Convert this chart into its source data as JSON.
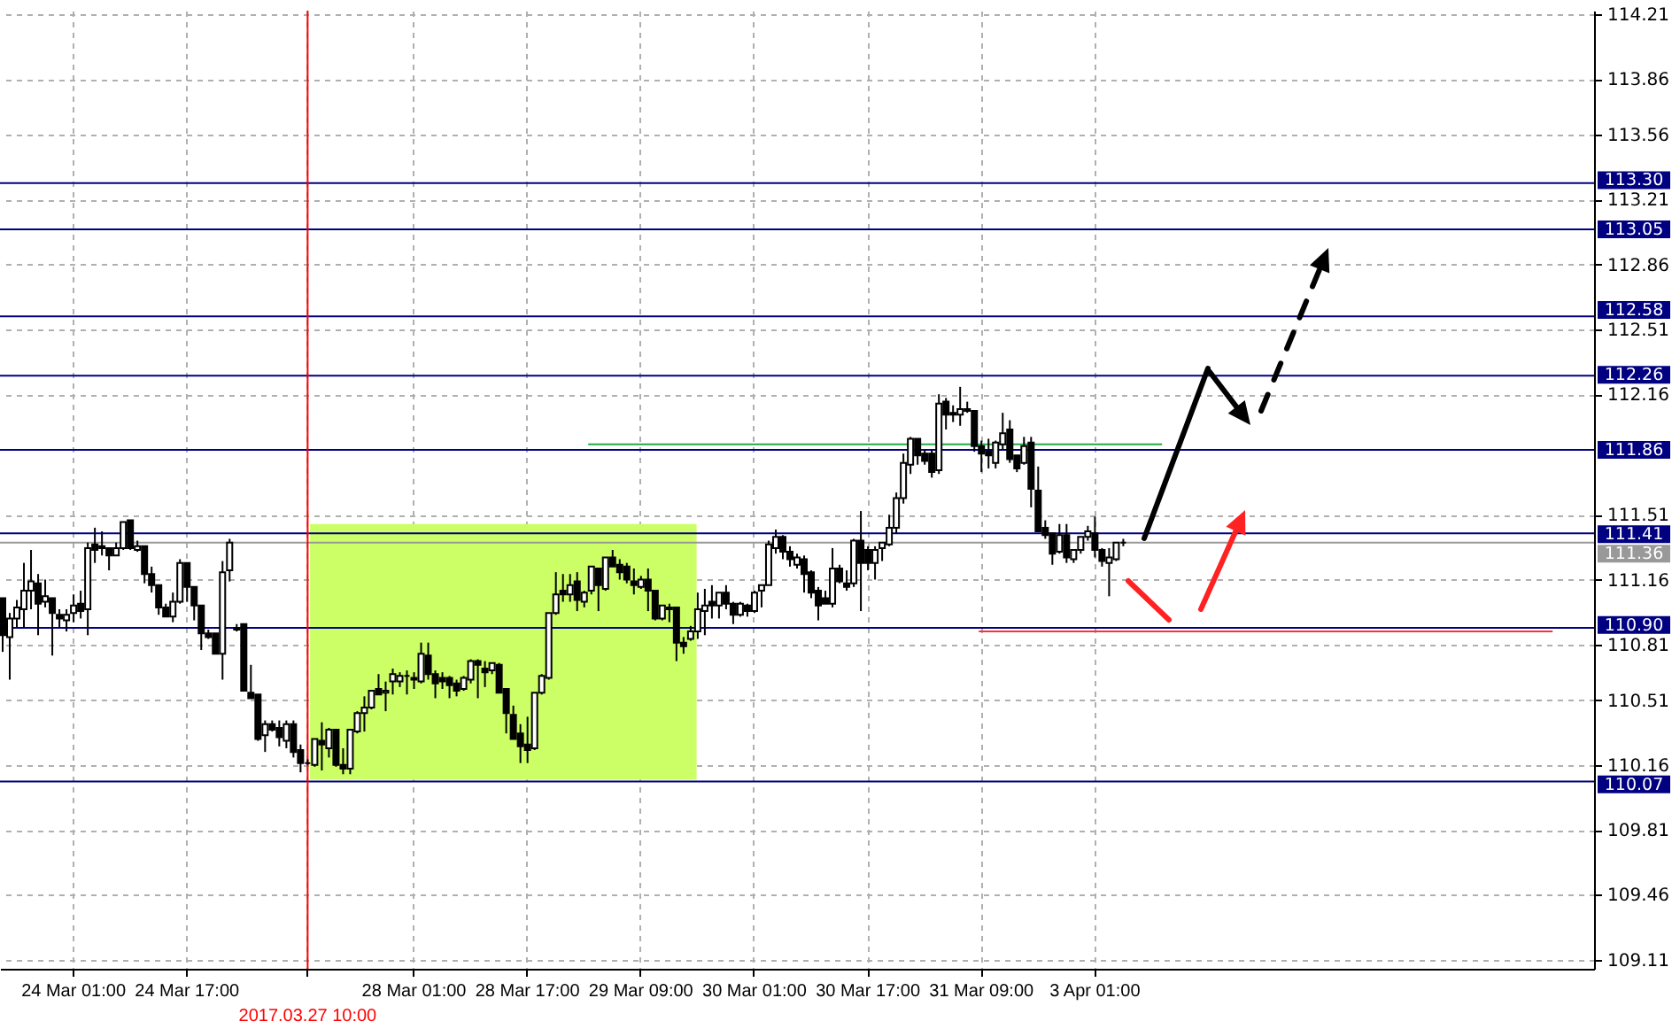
{
  "chart_data": {
    "type": "candlestick",
    "categories": [
      null,
      null,
      null,
      null,
      null,
      null,
      null,
      null,
      null,
      null,
      "24 Mar 01:00",
      null,
      null,
      null,
      null,
      null,
      null,
      null,
      null,
      null,
      null,
      null,
      null,
      null,
      null,
      null,
      "24 Mar 17:00",
      null,
      null,
      null,
      null,
      null,
      null,
      null,
      null,
      null,
      null,
      null,
      null,
      null,
      null,
      null,
      null,
      "2017.03.27 10:00",
      null,
      null,
      null,
      null,
      null,
      null,
      null,
      null,
      null,
      null,
      null,
      null,
      null,
      null,
      "28 Mar 01:00",
      null,
      null,
      null,
      null,
      null,
      null,
      null,
      null,
      null,
      null,
      null,
      null,
      null,
      null,
      null,
      "28 Mar 17:00",
      null,
      null,
      null,
      null,
      null,
      null,
      null,
      null,
      null,
      null,
      null,
      null,
      null,
      null,
      null,
      "29 Mar 09:00",
      null,
      null,
      null,
      null,
      null,
      null,
      null,
      null,
      null,
      null,
      null,
      null,
      null,
      null,
      null,
      "30 Mar 01:00",
      null,
      null,
      null,
      null,
      null,
      null,
      null,
      null,
      null,
      null,
      null,
      null,
      null,
      null,
      null,
      "30 Mar 17:00",
      null,
      null,
      null,
      null,
      null,
      null,
      null,
      null,
      null,
      null,
      null,
      null,
      null,
      null,
      null,
      "31 Mar 09:00",
      null,
      null,
      null,
      null,
      null,
      null,
      null,
      null,
      null,
      null,
      null,
      null,
      null,
      null,
      null,
      "3 Apr 01:00",
      null,
      null,
      null,
      null,
      null,
      null,
      null,
      null,
      null,
      null,
      null,
      null,
      null,
      null,
      null,
      null,
      null,
      null,
      null,
      null,
      null,
      null,
      null,
      null,
      null,
      null,
      null,
      null,
      null,
      null,
      null,
      null,
      null,
      null,
      null,
      null,
      null,
      null,
      null,
      null,
      null,
      null,
      null,
      null,
      null,
      null,
      null,
      null,
      null,
      null,
      null,
      null,
      null,
      null,
      null,
      null,
      null,
      null,
      null,
      null,
      null,
      null,
      null,
      null,
      null,
      null,
      null,
      null,
      null,
      null
    ],
    "ohlc": [
      [
        111.06,
        111.06,
        110.77,
        110.86
      ],
      [
        110.85,
        110.98,
        110.62,
        110.95
      ],
      [
        110.95,
        111.05,
        110.9,
        111.01
      ],
      [
        111.0,
        111.25,
        110.9,
        111.1
      ],
      [
        111.1,
        111.32,
        111.0,
        111.15
      ],
      [
        111.14,
        111.19,
        110.86,
        111.03
      ],
      [
        111.04,
        111.16,
        111.01,
        111.07
      ],
      [
        111.06,
        111.06,
        110.75,
        110.98
      ],
      [
        110.97,
        111.0,
        110.9,
        110.95
      ],
      [
        110.94,
        111.0,
        110.88,
        110.97
      ],
      [
        110.98,
        111.08,
        110.93,
        111.02
      ],
      [
        111.03,
        111.1,
        110.95,
        110.99
      ],
      [
        111.0,
        111.36,
        110.86,
        111.33
      ],
      [
        111.35,
        111.44,
        111.25,
        111.32
      ],
      [
        111.34,
        111.42,
        111.29,
        111.33
      ],
      [
        111.33,
        111.33,
        111.21,
        111.29
      ],
      [
        111.29,
        111.36,
        111.29,
        111.33
      ],
      [
        111.33,
        111.47,
        111.32,
        111.47
      ],
      [
        111.48,
        111.48,
        111.32,
        111.33
      ],
      [
        111.32,
        111.37,
        111.31,
        111.34
      ],
      [
        111.34,
        111.34,
        111.14,
        111.19
      ],
      [
        111.19,
        111.23,
        111.09,
        111.13
      ],
      [
        111.13,
        111.13,
        110.97,
        111.01
      ],
      [
        111.01,
        111.03,
        110.96,
        110.96
      ],
      [
        110.96,
        111.09,
        110.93,
        111.04
      ],
      [
        111.04,
        111.27,
        111.03,
        111.25
      ],
      [
        111.25,
        111.25,
        111.04,
        111.12
      ],
      [
        111.12,
        111.12,
        110.94,
        111.02
      ],
      [
        111.02,
        111.02,
        110.78,
        110.87
      ],
      [
        110.87,
        110.89,
        110.84,
        110.85
      ],
      [
        110.87,
        110.87,
        110.76,
        110.76
      ],
      [
        110.76,
        111.26,
        110.62,
        111.2
      ],
      [
        111.21,
        111.38,
        111.15,
        111.36
      ],
      [
        110.9,
        110.92,
        110.88,
        110.89
      ],
      [
        110.92,
        110.92,
        110.56,
        110.56
      ],
      [
        110.55,
        110.7,
        110.52,
        110.52
      ],
      [
        110.54,
        110.54,
        110.29,
        110.3
      ],
      [
        110.32,
        110.4,
        110.23,
        110.38
      ],
      [
        110.38,
        110.4,
        110.34,
        110.35
      ],
      [
        110.36,
        110.4,
        110.26,
        110.31
      ],
      [
        110.29,
        110.4,
        110.25,
        110.38
      ],
      [
        110.38,
        110.4,
        110.2,
        110.23
      ],
      [
        110.24,
        110.27,
        110.12,
        110.17
      ],
      [
        110.17,
        110.19,
        110.16,
        110.17
      ],
      [
        110.16,
        110.3,
        110.15,
        110.3
      ],
      [
        110.29,
        110.39,
        110.13,
        110.27
      ],
      [
        110.25,
        110.36,
        110.2,
        110.35
      ],
      [
        110.35,
        110.35,
        110.15,
        110.16
      ],
      [
        110.16,
        110.25,
        110.11,
        110.14
      ],
      [
        110.14,
        110.35,
        110.11,
        110.35
      ],
      [
        110.34,
        110.45,
        110.33,
        110.44
      ],
      [
        110.44,
        110.53,
        110.34,
        110.47
      ],
      [
        110.47,
        110.56,
        110.46,
        110.56
      ],
      [
        110.57,
        110.65,
        110.54,
        110.54
      ],
      [
        110.55,
        110.61,
        110.45,
        110.56
      ],
      [
        110.61,
        110.68,
        110.54,
        110.65
      ],
      [
        110.61,
        110.66,
        110.58,
        110.64
      ],
      [
        110.64,
        110.67,
        110.54,
        110.64
      ],
      [
        110.63,
        110.66,
        110.57,
        110.62
      ],
      [
        110.61,
        110.82,
        110.6,
        110.76
      ],
      [
        110.75,
        110.82,
        110.62,
        110.65
      ],
      [
        110.65,
        110.67,
        110.52,
        110.6
      ],
      [
        110.63,
        110.66,
        110.57,
        110.61
      ],
      [
        110.63,
        110.64,
        110.52,
        110.59
      ],
      [
        110.6,
        110.62,
        110.53,
        110.56
      ],
      [
        110.57,
        110.64,
        110.56,
        110.63
      ],
      [
        110.62,
        110.73,
        110.6,
        110.72
      ],
      [
        110.72,
        110.73,
        110.52,
        110.7
      ],
      [
        110.68,
        110.72,
        110.58,
        110.66
      ],
      [
        110.67,
        110.71,
        110.65,
        110.71
      ],
      [
        110.7,
        110.71,
        110.55,
        110.55
      ],
      [
        110.57,
        110.57,
        110.33,
        110.44
      ],
      [
        110.43,
        110.48,
        110.3,
        110.3
      ],
      [
        110.33,
        110.38,
        110.17,
        110.26
      ],
      [
        110.27,
        110.42,
        110.17,
        110.24
      ],
      [
        110.25,
        110.55,
        110.24,
        110.55
      ],
      [
        110.55,
        110.65,
        110.54,
        110.64
      ],
      [
        110.63,
        110.98,
        110.62,
        110.98
      ],
      [
        110.98,
        111.2,
        110.97,
        111.08
      ],
      [
        111.1,
        111.19,
        111.04,
        111.08
      ],
      [
        111.08,
        111.19,
        111.04,
        111.13
      ],
      [
        111.15,
        111.2,
        110.99,
        111.05
      ],
      [
        111.04,
        111.1,
        111.01,
        111.09
      ],
      [
        111.1,
        111.23,
        111.08,
        111.23
      ],
      [
        111.22,
        111.22,
        110.99,
        111.13
      ],
      [
        111.11,
        111.28,
        111.1,
        111.28
      ],
      [
        111.28,
        111.32,
        111.23,
        111.23
      ],
      [
        111.24,
        111.27,
        111.16,
        111.2
      ],
      [
        111.23,
        111.25,
        111.14,
        111.16
      ],
      [
        111.15,
        111.22,
        111.08,
        111.13
      ],
      [
        111.12,
        111.18,
        111.11,
        111.16
      ],
      [
        111.16,
        111.22,
        110.99,
        111.1
      ],
      [
        111.1,
        111.1,
        110.94,
        110.95
      ],
      [
        110.95,
        111.02,
        110.94,
        111.02
      ],
      [
        111.01,
        111.03,
        110.93,
        111.0
      ],
      [
        111.01,
        111.01,
        110.72,
        110.82
      ],
      [
        110.82,
        110.85,
        110.76,
        110.8
      ],
      [
        110.84,
        110.91,
        110.83,
        110.88
      ],
      [
        110.88,
        111.09,
        110.84,
        111.0
      ],
      [
        110.99,
        111.11,
        110.86,
        111.02
      ],
      [
        111.04,
        111.13,
        110.95,
        111.02
      ],
      [
        111.02,
        111.09,
        110.95,
        111.09
      ],
      [
        111.09,
        111.13,
        111.0,
        111.03
      ],
      [
        111.03,
        111.04,
        110.92,
        110.97
      ],
      [
        110.97,
        111.04,
        110.96,
        111.03
      ],
      [
        111.02,
        111.03,
        110.96,
        110.99
      ],
      [
        110.99,
        111.1,
        110.98,
        111.09
      ],
      [
        111.1,
        111.13,
        111.01,
        111.13
      ],
      [
        111.13,
        111.37,
        111.13,
        111.35
      ],
      [
        111.33,
        111.43,
        111.3,
        111.39
      ],
      [
        111.39,
        111.4,
        111.27,
        111.31
      ],
      [
        111.31,
        111.34,
        111.23,
        111.27
      ],
      [
        111.24,
        111.3,
        111.22,
        111.28
      ],
      [
        111.27,
        111.29,
        111.09,
        111.19
      ],
      [
        111.2,
        111.21,
        111.06,
        111.09
      ],
      [
        111.1,
        111.12,
        110.94,
        111.02
      ],
      [
        111.06,
        111.1,
        111.03,
        111.03
      ],
      [
        111.03,
        111.33,
        111.01,
        111.22
      ],
      [
        111.22,
        111.24,
        111.14,
        111.15
      ],
      [
        111.14,
        111.21,
        111.1,
        111.12
      ],
      [
        111.14,
        111.38,
        111.12,
        111.37
      ],
      [
        111.37,
        111.53,
        110.99,
        111.25
      ],
      [
        111.32,
        111.34,
        111.21,
        111.25
      ],
      [
        111.25,
        111.34,
        111.16,
        111.32
      ],
      [
        111.33,
        111.36,
        111.26,
        111.36
      ],
      [
        111.35,
        111.51,
        111.34,
        111.44
      ],
      [
        111.44,
        111.63,
        111.41,
        111.6
      ],
      [
        111.6,
        111.84,
        111.57,
        111.79
      ],
      [
        111.78,
        111.93,
        111.73,
        111.92
      ],
      [
        111.92,
        111.92,
        111.78,
        111.83
      ],
      [
        111.84,
        111.86,
        111.78,
        111.8
      ],
      [
        111.84,
        111.86,
        111.71,
        111.74
      ],
      [
        111.75,
        112.16,
        111.73,
        112.11
      ],
      [
        112.12,
        112.14,
        111.97,
        112.05
      ],
      [
        112.06,
        112.1,
        112.01,
        112.05
      ],
      [
        112.05,
        112.2,
        111.99,
        112.08
      ],
      [
        112.08,
        112.12,
        112.06,
        112.07
      ],
      [
        112.07,
        112.07,
        111.85,
        111.88
      ],
      [
        111.88,
        111.91,
        111.74,
        111.84
      ],
      [
        111.85,
        111.92,
        111.76,
        111.83
      ],
      [
        111.79,
        111.91,
        111.76,
        111.9
      ],
      [
        111.89,
        112.06,
        111.86,
        111.95
      ],
      [
        111.97,
        112.02,
        111.79,
        111.81
      ],
      [
        111.83,
        111.83,
        111.74,
        111.76
      ],
      [
        111.79,
        111.93,
        111.78,
        111.88
      ],
      [
        111.9,
        111.93,
        111.55,
        111.65
      ],
      [
        111.64,
        111.77,
        111.42,
        111.42
      ],
      [
        111.44,
        111.48,
        111.38,
        111.4
      ],
      [
        111.41,
        111.41,
        111.24,
        111.3
      ],
      [
        111.31,
        111.46,
        111.3,
        111.4
      ],
      [
        111.4,
        111.46,
        111.25,
        111.28
      ],
      [
        111.27,
        111.32,
        111.25,
        111.32
      ],
      [
        111.32,
        111.39,
        111.3,
        111.39
      ],
      [
        111.39,
        111.45,
        111.37,
        111.42
      ],
      [
        111.41,
        111.5,
        111.28,
        111.32
      ],
      [
        111.32,
        111.33,
        111.23,
        111.26
      ],
      [
        111.25,
        111.33,
        111.07,
        111.28
      ],
      [
        111.27,
        111.36,
        111.26,
        111.36
      ],
      [
        111.36,
        111.38,
        111.34,
        111.36
      ],
      null,
      null,
      null,
      null,
      null,
      null,
      null,
      null,
      null,
      null,
      null,
      null,
      null,
      null,
      null,
      null,
      null,
      null,
      null,
      null,
      null,
      null,
      null,
      null,
      null,
      null,
      null,
      null,
      null,
      null,
      null,
      null,
      null,
      null,
      null,
      null,
      null,
      null,
      null,
      null,
      null,
      null,
      null,
      null,
      null,
      null,
      null,
      null,
      null,
      null,
      null,
      null,
      null,
      null,
      null,
      null,
      null,
      null,
      null,
      null,
      null,
      null,
      null,
      null,
      null,
      null
    ],
    "ylim": [
      109.06,
      114.23
    ],
    "yticks": [
      109.11,
      109.46,
      109.81,
      110.16,
      110.51,
      110.81,
      111.16,
      111.51,
      112.16,
      112.51,
      112.86,
      113.21,
      113.56,
      113.86,
      114.21
    ],
    "grid": true,
    "ref_lines": [
      {
        "axis": "y",
        "value": 113.3,
        "label": "113.30",
        "color": "#000080"
      },
      {
        "axis": "y",
        "value": 113.05,
        "label": "113.05",
        "color": "#000080"
      },
      {
        "axis": "y",
        "value": 112.58,
        "label": "112.58",
        "color": "#000080"
      },
      {
        "axis": "y",
        "value": 112.26,
        "label": "112.26",
        "color": "#000080"
      },
      {
        "axis": "y",
        "value": 111.86,
        "label": "111.86",
        "color": "#000080"
      },
      {
        "axis": "y",
        "value": 111.41,
        "label": "111.41",
        "color": "#000080"
      },
      {
        "axis": "y",
        "value": 111.36,
        "label": "111.36",
        "color": "#999999"
      },
      {
        "axis": "y",
        "value": 110.9,
        "label": "110.90",
        "color": "#000080"
      },
      {
        "axis": "y",
        "value": 110.07,
        "label": "110.07",
        "color": "#000080"
      },
      {
        "axis": "y",
        "value": 111.89,
        "color": "#22aa44"
      },
      {
        "axis": "y",
        "value": 110.88,
        "color": "#ff3333"
      },
      {
        "axis": "x",
        "value": "2017.03.27 10:00",
        "color": "#ff0000"
      }
    ],
    "bands": [
      {
        "axis": "y",
        "from": 110.08,
        "to": 111.46,
        "color": "#ccff66"
      }
    ]
  }
}
